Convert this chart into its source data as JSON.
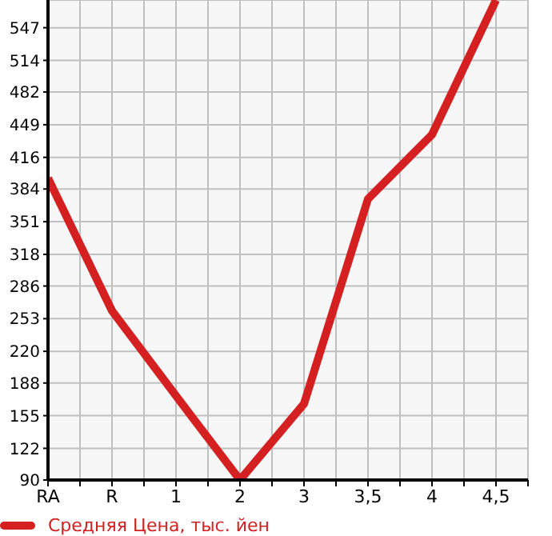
{
  "chart_data": {
    "type": "line",
    "categories": [
      "RA",
      "R",
      "1",
      "2",
      "3",
      "3,5",
      "4",
      "4,5"
    ],
    "series": [
      {
        "name": "Средняя Цена, тыс. йен",
        "color": "#d42020",
        "values": [
          395,
          261,
          175,
          90,
          167,
          374,
          439,
          575
        ]
      }
    ],
    "ylim": [
      90,
      575
    ],
    "yticks": [
      90,
      122,
      155,
      188,
      220,
      253,
      286,
      318,
      351,
      384,
      416,
      449,
      482,
      514,
      547
    ],
    "grid": true,
    "legend": "bottom",
    "marker": "none"
  }
}
